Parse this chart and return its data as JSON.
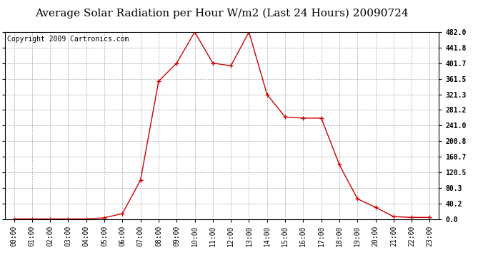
{
  "title": "Average Solar Radiation per Hour W/m2 (Last 24 Hours) 20090724",
  "copyright": "Copyright 2009 Cartronics.com",
  "hours": [
    0,
    1,
    2,
    3,
    4,
    5,
    6,
    7,
    8,
    9,
    10,
    11,
    12,
    13,
    14,
    15,
    16,
    17,
    18,
    19,
    20,
    21,
    22,
    23
  ],
  "x_labels": [
    "00:00",
    "01:00",
    "02:00",
    "03:00",
    "04:00",
    "05:00",
    "06:00",
    "07:00",
    "08:00",
    "09:00",
    "10:00",
    "11:00",
    "12:00",
    "13:00",
    "14:00",
    "15:00",
    "16:00",
    "17:00",
    "18:00",
    "19:00",
    "20:00",
    "21:00",
    "22:00",
    "23:00"
  ],
  "values": [
    0,
    0,
    0,
    0,
    0,
    3,
    14,
    100,
    355,
    402,
    482,
    402,
    395,
    482,
    321,
    263,
    260,
    260,
    140,
    52,
    30,
    6,
    4,
    4
  ],
  "line_color": "#cc0000",
  "marker": "+",
  "background_color": "#ffffff",
  "grid_color": "#aaaaaa",
  "y_ticks": [
    0.0,
    40.2,
    80.3,
    120.5,
    160.7,
    200.8,
    241.0,
    281.2,
    321.3,
    361.5,
    401.7,
    441.8,
    482.0
  ],
  "ylim": [
    0,
    482.0
  ],
  "title_fontsize": 11,
  "copyright_fontsize": 7,
  "tick_fontsize": 7,
  "ytick_fontsize": 7
}
